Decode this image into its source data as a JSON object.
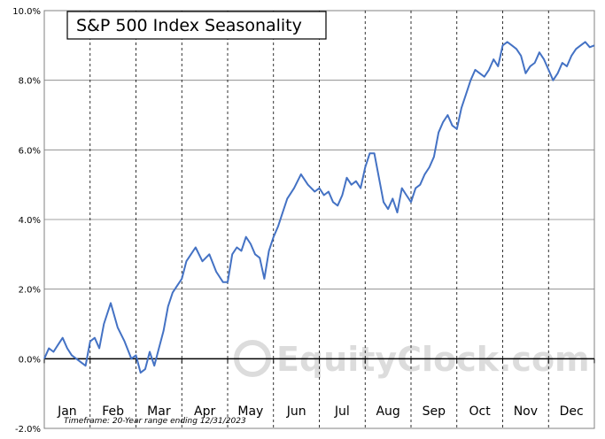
{
  "chart_data": {
    "type": "line",
    "title": "S&P 500 Index Seasonality",
    "footnote": "Timeframe: 20-Year range ending 12/31/2023",
    "watermark": "EquityClock.com",
    "y_ticks": [
      "10.0%",
      "8.0%",
      "6.0%",
      "4.0%",
      "2.0%",
      "0.0%",
      "-2.0%"
    ],
    "ylim": [
      -2.0,
      10.0
    ],
    "months": [
      "Jan",
      "Feb",
      "Mar",
      "Apr",
      "May",
      "Jun",
      "Jul",
      "Aug",
      "Sep",
      "Oct",
      "Nov",
      "Dec"
    ],
    "line_color": "#4472c4",
    "grid": true,
    "series": [
      {
        "x": [
          0,
          0.1,
          0.2,
          0.3,
          0.4,
          0.5,
          0.6,
          0.7,
          0.8,
          0.9,
          1.0,
          1.1,
          1.2,
          1.3,
          1.45,
          1.6,
          1.75,
          1.9,
          2.0,
          2.1,
          2.2,
          2.3,
          2.4,
          2.5,
          2.6,
          2.7,
          2.8,
          2.9,
          3.0,
          3.1,
          3.2,
          3.3,
          3.45,
          3.6,
          3.75,
          3.9,
          4.0,
          4.1,
          4.2,
          4.3,
          4.4,
          4.5,
          4.6,
          4.7,
          4.8,
          4.9,
          5.0,
          5.1,
          5.2,
          5.3,
          5.45,
          5.6,
          5.75,
          5.9,
          6.0,
          6.1,
          6.2,
          6.3,
          6.4,
          6.5,
          6.6,
          6.7,
          6.8,
          6.9,
          7.0,
          7.1,
          7.2,
          7.3,
          7.4,
          7.5,
          7.6,
          7.7,
          7.8,
          7.9,
          8.0,
          8.1,
          8.2,
          8.3,
          8.4,
          8.5,
          8.6,
          8.7,
          8.8,
          8.9,
          9.0,
          9.1,
          9.2,
          9.3,
          9.4,
          9.5,
          9.6,
          9.7,
          9.8,
          9.9,
          10.0,
          10.1,
          10.2,
          10.3,
          10.4,
          10.5,
          10.6,
          10.7,
          10.8,
          10.9,
          11.0,
          11.1,
          11.2,
          11.3,
          11.4,
          11.5,
          11.6,
          11.7,
          11.8,
          11.9,
          12.0
        ],
        "values": [
          0.0,
          0.3,
          0.2,
          0.4,
          0.6,
          0.3,
          0.1,
          0.0,
          -0.1,
          -0.2,
          0.5,
          0.6,
          0.3,
          1.0,
          1.6,
          0.9,
          0.5,
          0.0,
          0.1,
          -0.4,
          -0.3,
          0.2,
          -0.2,
          0.3,
          0.8,
          1.5,
          1.9,
          2.1,
          2.3,
          2.8,
          3.0,
          3.2,
          2.8,
          3.0,
          2.5,
          2.2,
          2.2,
          3.0,
          3.2,
          3.1,
          3.5,
          3.3,
          3.0,
          2.9,
          2.3,
          3.1,
          3.5,
          3.8,
          4.2,
          4.6,
          4.9,
          5.3,
          5.0,
          4.8,
          4.9,
          4.7,
          4.8,
          4.5,
          4.4,
          4.7,
          5.2,
          5.0,
          5.1,
          4.9,
          5.5,
          5.9,
          5.9,
          5.2,
          4.5,
          4.3,
          4.6,
          4.2,
          4.9,
          4.7,
          4.5,
          4.9,
          5.0,
          5.3,
          5.5,
          5.8,
          6.5,
          6.8,
          7.0,
          6.7,
          6.6,
          7.2,
          7.6,
          8.0,
          8.3,
          8.2,
          8.1,
          8.3,
          8.6,
          8.4,
          9.0,
          9.1,
          9.0,
          8.9,
          8.7,
          8.2,
          8.4,
          8.5,
          8.8,
          8.6,
          8.3,
          8.0,
          8.2,
          8.5,
          8.4,
          8.7,
          8.9,
          9.0,
          9.1,
          8.95,
          9.0
        ]
      }
    ]
  }
}
